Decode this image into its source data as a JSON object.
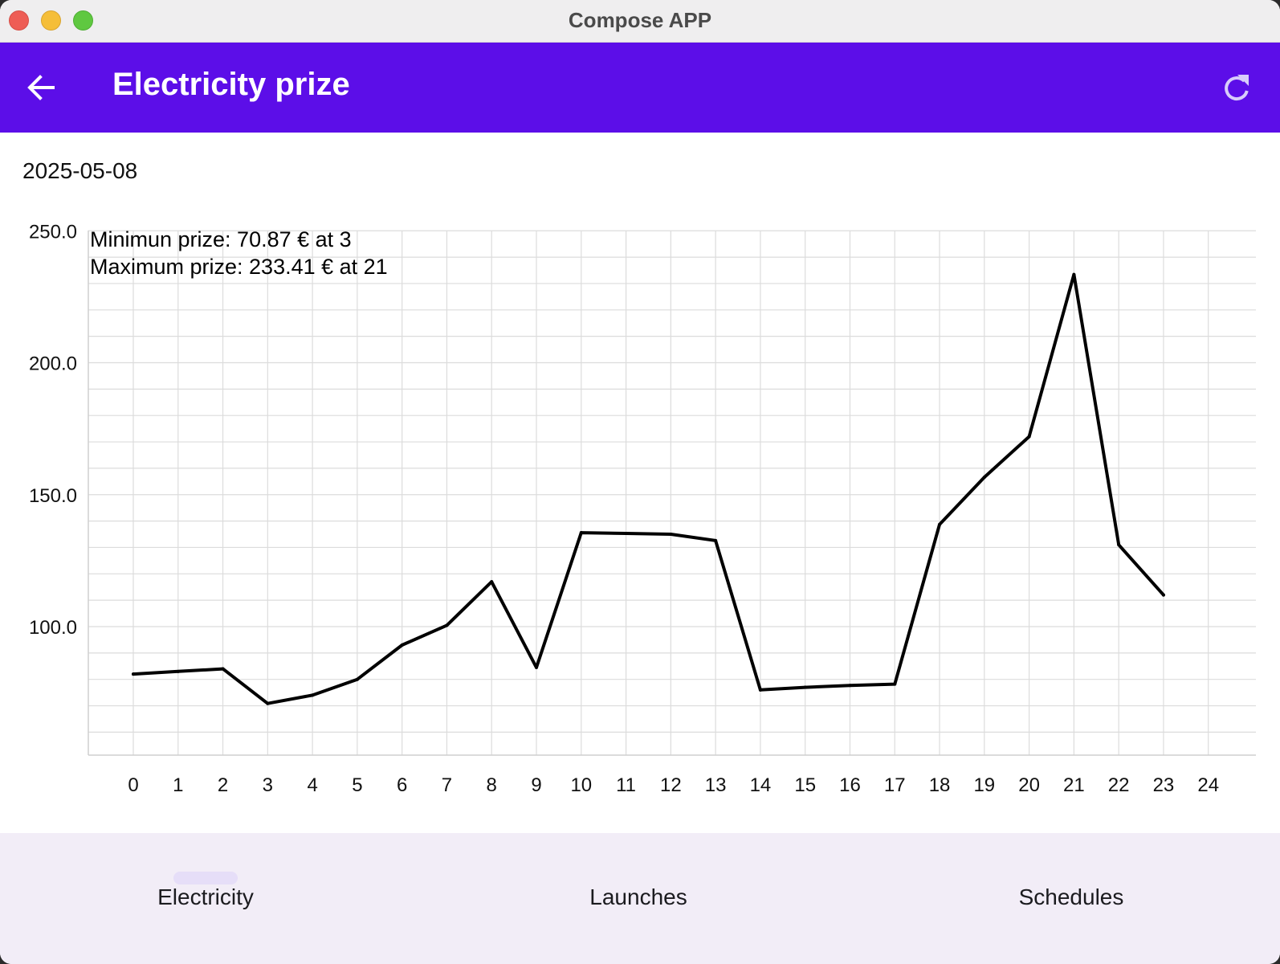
{
  "window": {
    "title": "Compose APP"
  },
  "appbar": {
    "title": "Electricity prize",
    "back_icon": "arrow-back-icon",
    "refresh_icon": "refresh-icon",
    "color": "#5c0ee8"
  },
  "date": "2025-05-08",
  "info": {
    "min_text": "Minimun prize: 70.87 € at 3",
    "max_text": "Maximum prize: 233.41 € at 21"
  },
  "nav": {
    "items": [
      {
        "label": "Electricity",
        "selected": true
      },
      {
        "label": "Launches",
        "selected": false
      },
      {
        "label": "Schedules",
        "selected": false
      }
    ]
  },
  "chart_data": {
    "type": "line",
    "x": [
      0,
      1,
      2,
      3,
      4,
      5,
      6,
      7,
      8,
      9,
      10,
      11,
      12,
      13,
      14,
      15,
      16,
      17,
      18,
      19,
      20,
      21,
      22,
      23
    ],
    "series": [
      {
        "values": [
          82,
          83,
          84,
          70.87,
          74,
          80,
          93,
          100.5,
          117,
          84.5,
          135.6,
          135.3,
          135,
          132.6,
          76,
          77,
          77.7,
          78.2,
          138.7,
          156.6,
          172,
          233.41,
          131,
          112
        ]
      }
    ],
    "xticks": [
      "0",
      "1",
      "2",
      "3",
      "4",
      "5",
      "6",
      "7",
      "8",
      "9",
      "10",
      "11",
      "12",
      "13",
      "14",
      "15",
      "16",
      "17",
      "18",
      "19",
      "20",
      "21",
      "22",
      "23",
      "24"
    ],
    "yticks": [
      "100.0",
      "150.0",
      "200.0",
      "250.0"
    ],
    "xlim": [
      0,
      24
    ],
    "ylim": [
      50,
      250
    ],
    "grid": true,
    "line_color": "#000000",
    "grid_color": "#dcdcdc"
  }
}
